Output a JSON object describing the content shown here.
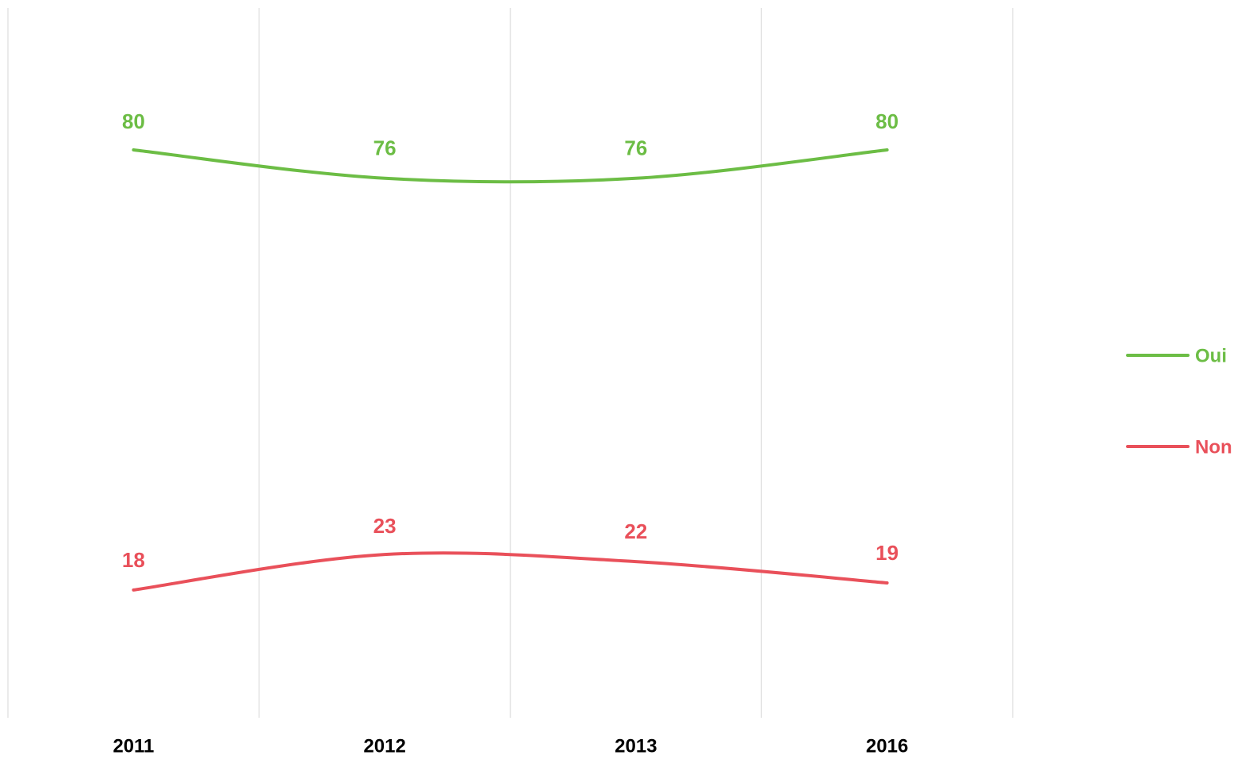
{
  "chart_data": {
    "type": "line",
    "categories": [
      "2011",
      "2012",
      "2013",
      "2016"
    ],
    "series": [
      {
        "name": "Oui",
        "color": "#6cbd45",
        "values": [
          80,
          76,
          76,
          80
        ]
      },
      {
        "name": "Non",
        "color": "#e9505a",
        "values": [
          18,
          23,
          22,
          19
        ]
      }
    ],
    "ylim": [
      0,
      100
    ],
    "smooth": true,
    "data_labels": true,
    "legend": "right"
  }
}
